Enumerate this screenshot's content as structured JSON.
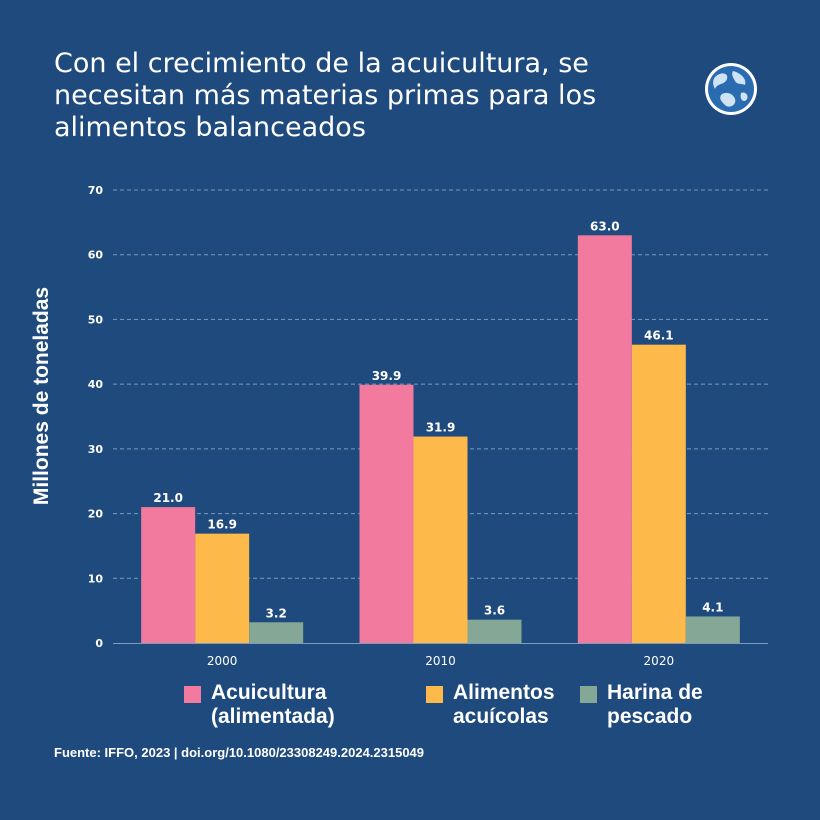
{
  "title": "Con el crecimiento de la acuicultura, se necesitan más materias primas para los alimentos balanceados",
  "source": "Fuente: IFFO, 2023 | doi.org/10.1080/23308249.2024.2315049",
  "logo_icon": "globe-icon",
  "colors": {
    "background": "#1f4a7d",
    "acuicultura": "#f27a9e",
    "alimentos": "#fdb94a",
    "harina": "#85a896",
    "grid": "#7f9bbd"
  },
  "chart_data": {
    "type": "bar",
    "ylabel": "Millones de toneladas",
    "xlabel": "",
    "categories": [
      "2000",
      "2010",
      "2020"
    ],
    "ylim": [
      0,
      70
    ],
    "yticks": [
      0,
      10,
      20,
      30,
      40,
      50,
      60,
      70
    ],
    "grid": true,
    "legend_position": "bottom",
    "series": [
      {
        "name": "Acuicultura\n(alimentada)",
        "values": [
          21.0,
          39.9,
          63.0
        ],
        "labels": [
          "21.0",
          "39.9",
          "63.0"
        ]
      },
      {
        "name": "Alimentos\nacuícolas",
        "values": [
          16.9,
          31.9,
          46.1
        ],
        "labels": [
          "16.9",
          "31.9",
          "46.1"
        ]
      },
      {
        "name": "Harina de\npescado",
        "values": [
          3.2,
          3.6,
          4.1
        ],
        "labels": [
          "3.2",
          "3.6",
          "4.1"
        ]
      }
    ]
  }
}
